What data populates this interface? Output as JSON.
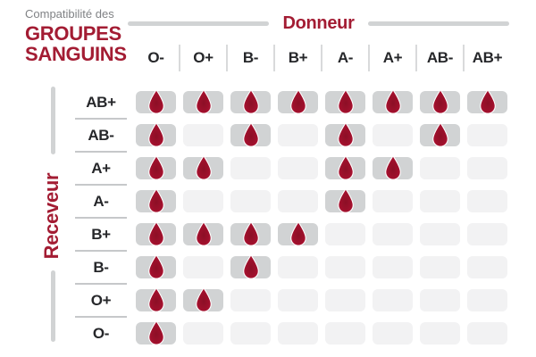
{
  "title": {
    "subtitle": "Compatibilité des",
    "line1": "GROUPES",
    "line2": "SANGUINS"
  },
  "axes": {
    "donor_label": "Donneur",
    "receiver_label": "Receveur"
  },
  "chart_data": {
    "type": "heatmap",
    "title": "Compatibilité des GROUPES SANGUINS",
    "x_axis_label": "Donneur",
    "y_axis_label": "Receveur",
    "columns": [
      "O-",
      "O+",
      "B-",
      "B+",
      "A-",
      "A+",
      "AB-",
      "AB+"
    ],
    "rows": [
      "AB+",
      "AB-",
      "A+",
      "A-",
      "B+",
      "B-",
      "O+",
      "O-"
    ],
    "marker": "blood-drop-icon",
    "values_legend": "1 = compatible (blood drop on dark cell), 0 = incompatible (empty light cell)",
    "matrix": [
      [
        1,
        1,
        1,
        1,
        1,
        1,
        1,
        1
      ],
      [
        1,
        0,
        1,
        0,
        1,
        0,
        1,
        0
      ],
      [
        1,
        1,
        0,
        0,
        1,
        1,
        0,
        0
      ],
      [
        1,
        0,
        0,
        0,
        1,
        0,
        0,
        0
      ],
      [
        1,
        1,
        1,
        1,
        0,
        0,
        0,
        0
      ],
      [
        1,
        0,
        1,
        0,
        0,
        0,
        0,
        0
      ],
      [
        1,
        1,
        0,
        0,
        0,
        0,
        0,
        0
      ],
      [
        1,
        0,
        0,
        0,
        0,
        0,
        0,
        0
      ]
    ]
  },
  "colors": {
    "accent_red": "#A31C33",
    "subtitle_gray": "#808285",
    "header_text": "#26272A",
    "cell_filled": "#D1D3D4",
    "cell_empty": "#F2F2F3",
    "axis_line_gray": "#D1D3D4",
    "separator_gray": "#C6C8CA",
    "drop_center": "#8C0F26",
    "drop_mid": "#9C102B",
    "drop_edge": "#B01334",
    "drop_outline": "#FFFFFF"
  }
}
